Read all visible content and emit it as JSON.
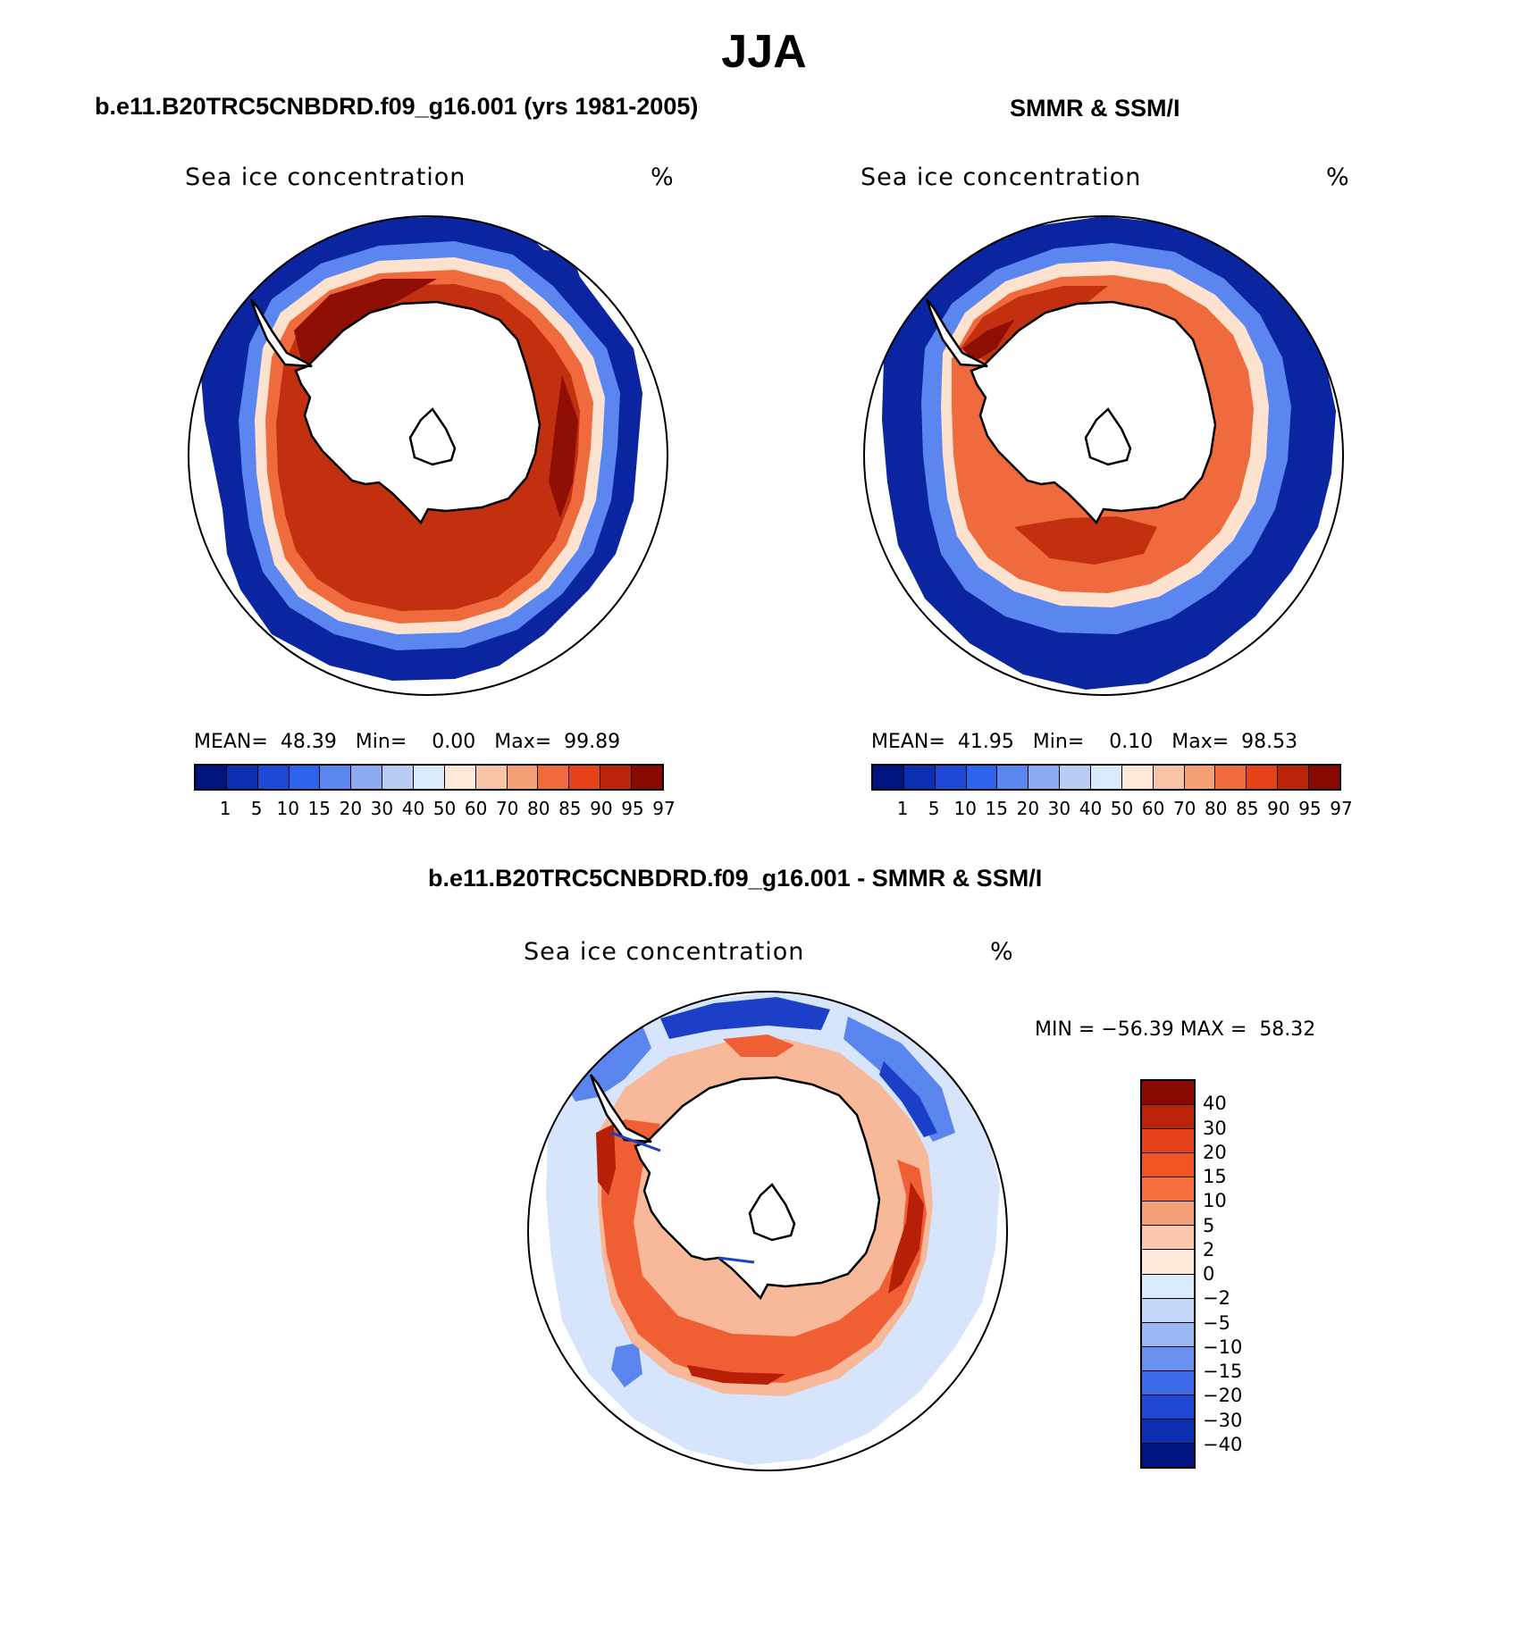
{
  "figure": {
    "title": "JJA",
    "season": "JJA",
    "hemisphere": "Southern Hemisphere (polar stereographic)"
  },
  "panels": [
    {
      "id": "model",
      "header": "b.e11.B20TRC5CNBDRD.f09_g16.001 (yrs 1981-2005)",
      "label_left": "Sea ice concentration",
      "label_right": "%",
      "stats": {
        "mean_label": "MEAN=",
        "mean": "48.39",
        "min_label": "Min=",
        "min": "0.00",
        "max_label": "Max=",
        "max": "99.89"
      }
    },
    {
      "id": "obs",
      "header": "SMMR & SSM/I",
      "label_left": "Sea ice concentration",
      "label_right": "%",
      "stats": {
        "mean_label": "MEAN=",
        "mean": "41.95",
        "min_label": "Min=",
        "min": "0.10",
        "max_label": "Max=",
        "max": "98.53"
      }
    },
    {
      "id": "diff",
      "header": "b.e11.B20TRC5CNBDRD.f09_g16.001 - SMMR & SSM/I",
      "label_left": "Sea ice concentration",
      "label_right": "%",
      "stats": {
        "min_label": "MIN =",
        "min": "−56.39",
        "max_label": "MAX =",
        "max": "58.32"
      }
    }
  ],
  "colorbar_concentration": {
    "ticks": [
      "1",
      "5",
      "10",
      "15",
      "20",
      "30",
      "40",
      "50",
      "60",
      "70",
      "80",
      "85",
      "90",
      "95",
      "97"
    ],
    "colors": [
      "#00137f",
      "#0a2fb0",
      "#1f47d8",
      "#2e63ee",
      "#5b86f0",
      "#8aaaf2",
      "#b7cdf6",
      "#dcebfb",
      "#fde9d8",
      "#f8c4a8",
      "#f59f77",
      "#f16a3c",
      "#e5421a",
      "#bc2409",
      "#8a0a03"
    ]
  },
  "colorbar_difference": {
    "ticks": [
      "40",
      "30",
      "20",
      "15",
      "10",
      "5",
      "2",
      "0",
      "−2",
      "−5",
      "−10",
      "−15",
      "−20",
      "−30",
      "−40"
    ],
    "colors": [
      "#8a0a03",
      "#bc2409",
      "#e5421a",
      "#f45423",
      "#f6713f",
      "#f59f77",
      "#fbc8ad",
      "#fde9d8",
      "#dcebfb",
      "#c3d7f8",
      "#9ab9f4",
      "#6a91ef",
      "#3e6ce9",
      "#2048d2",
      "#0a2fb0",
      "#00137f"
    ]
  },
  "map_colors": {
    "land": "#ffffff",
    "coast": "#000000",
    "ice_core": "#c2300f",
    "ice_dark": "#8f0f05",
    "ice_mid": "#ef6a3c",
    "ice_edge": "#f8b694",
    "ice_pale": "#fde2cf",
    "water_pale": "#cfe0fb",
    "water_mid": "#5b86f0",
    "water_dark": "#0b25a0",
    "diff_pos_strong": "#b71f07",
    "diff_pos": "#ef5f33",
    "diff_pos_weak": "#f8b99a",
    "diff_neg_weak": "#d6e5fb",
    "diff_neg": "#5a84ee",
    "diff_neg_strong": "#1c3fc8"
  }
}
